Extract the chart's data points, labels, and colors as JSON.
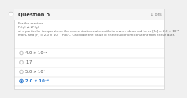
{
  "title": "Question 5",
  "pts": "1 pts",
  "body_lines": [
    "For the reaction",
    "F₂(g) ⇌ 2F(g)",
    "at a particular temperature, the concentrations at equilibrium were observed to be [F₂] = 2.0 × 10⁻²",
    "mol/L and [F] = 2.0 × 10⁻⁴ mol/L. Calculate the value of the equilibrium constant from these data."
  ],
  "options": [
    {
      "text": "4.0 × 10⁻²",
      "selected": false
    },
    {
      "text": "1.7",
      "selected": false
    },
    {
      "text": "5.0 × 10⁵",
      "selected": false
    },
    {
      "text": "2.0 × 10⁻⁶",
      "selected": true
    }
  ],
  "bg_color": "#ffffff",
  "outer_bg": "#f0f0f0",
  "header_bg": "#f5f5f5",
  "border_color": "#d0d0d0",
  "title_color": "#333333",
  "pts_color": "#888888",
  "body_color": "#666666",
  "option_color": "#555555",
  "selected_color": "#1a6fcc",
  "radio_color": "#bbbbbb",
  "selected_radio_color": "#1a6fcc",
  "left_bar_color": "#e8e8e8",
  "left_indicator_color": "#c0c0c0"
}
